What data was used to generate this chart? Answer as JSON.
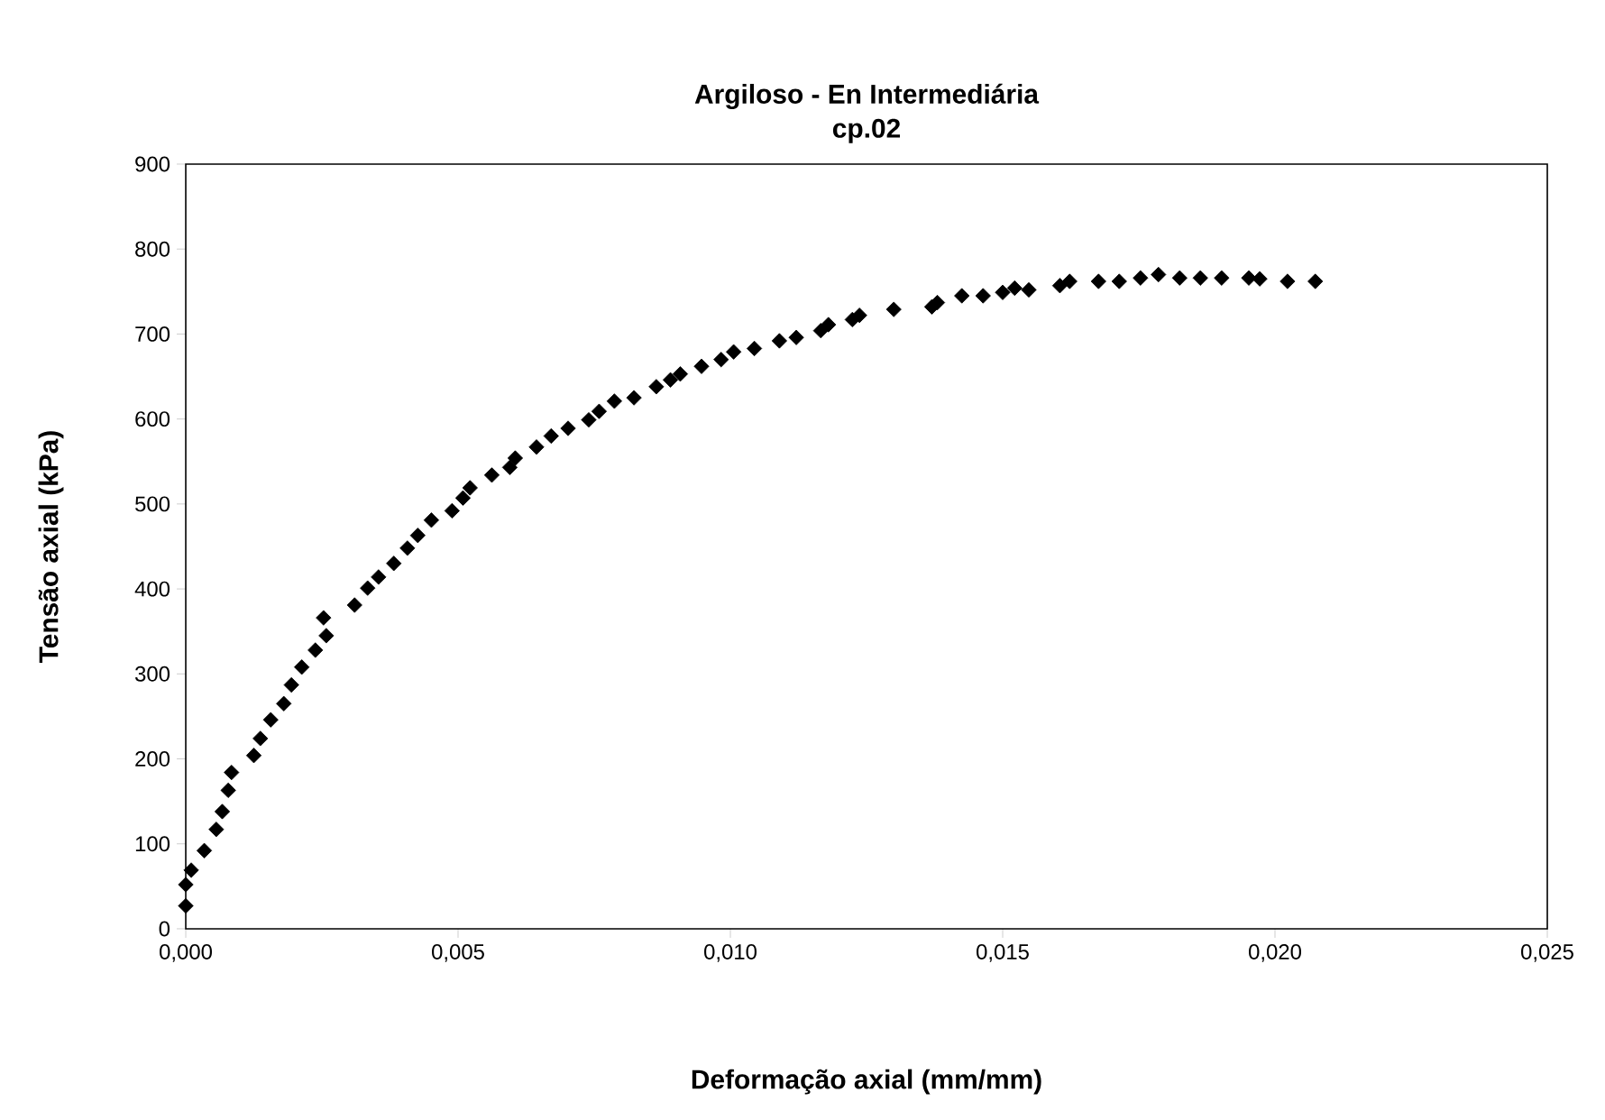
{
  "chart_data": {
    "type": "scatter",
    "title": "Argiloso - En Intermediária",
    "subtitle": "cp.02",
    "xlabel": "Deformação axial (mm/mm)",
    "ylabel": "Tensão axial (kPa)",
    "x": [
      0.0,
      0.0,
      0.0001,
      0.00034,
      0.00056,
      0.00067,
      0.00078,
      0.00084,
      0.00125,
      0.00137,
      0.00156,
      0.0018,
      0.00194,
      0.00213,
      0.00238,
      0.00258,
      0.00253,
      0.0031,
      0.00334,
      0.00354,
      0.00382,
      0.00407,
      0.00426,
      0.00451,
      0.00489,
      0.00509,
      0.00522,
      0.00562,
      0.00595,
      0.00605,
      0.00644,
      0.00671,
      0.00702,
      0.0074,
      0.00759,
      0.00787,
      0.00823,
      0.00864,
      0.0089,
      0.00908,
      0.00947,
      0.00983,
      0.01006,
      0.01044,
      0.0109,
      0.01121,
      0.01166,
      0.0118,
      0.01224,
      0.01237,
      0.013,
      0.0137,
      0.0138,
      0.01425,
      0.01464,
      0.015,
      0.01522,
      0.01548,
      0.01605,
      0.01623,
      0.01676,
      0.01714,
      0.01753,
      0.01786,
      0.01825,
      0.01863,
      0.01902,
      0.01952,
      0.01972,
      0.02023,
      0.02074
    ],
    "series": [
      {
        "color": "#000000",
        "values": [
          27,
          52,
          69,
          92,
          117,
          138,
          163,
          184,
          204,
          224,
          246,
          265,
          287,
          308,
          328,
          345,
          366,
          381,
          401,
          414,
          430,
          448,
          463,
          481,
          492,
          507,
          519,
          534,
          543,
          554,
          567,
          580,
          589,
          599,
          609,
          621,
          625,
          638,
          646,
          653,
          662,
          670,
          679,
          683,
          692,
          696,
          704,
          711,
          717,
          722,
          729,
          732,
          737,
          745,
          745,
          749,
          754,
          752,
          757,
          762,
          762,
          762,
          766,
          770,
          766,
          766,
          766,
          766,
          765,
          762,
          762
        ]
      }
    ],
    "marker": "diamond",
    "xlim": [
      0,
      0.025
    ],
    "xticks": [
      {
        "value": 0,
        "label": "0,000"
      },
      {
        "value": 0.005,
        "label": "0,005"
      },
      {
        "value": 0.01,
        "label": "0,010"
      },
      {
        "value": 0.015,
        "label": "0,015"
      },
      {
        "value": 0.02,
        "label": "0,020"
      },
      {
        "value": 0.025,
        "label": "0,025"
      }
    ],
    "ylim": [
      0,
      900
    ],
    "yticks": [
      0,
      100,
      200,
      300,
      400,
      500,
      600,
      700,
      800,
      900
    ]
  }
}
